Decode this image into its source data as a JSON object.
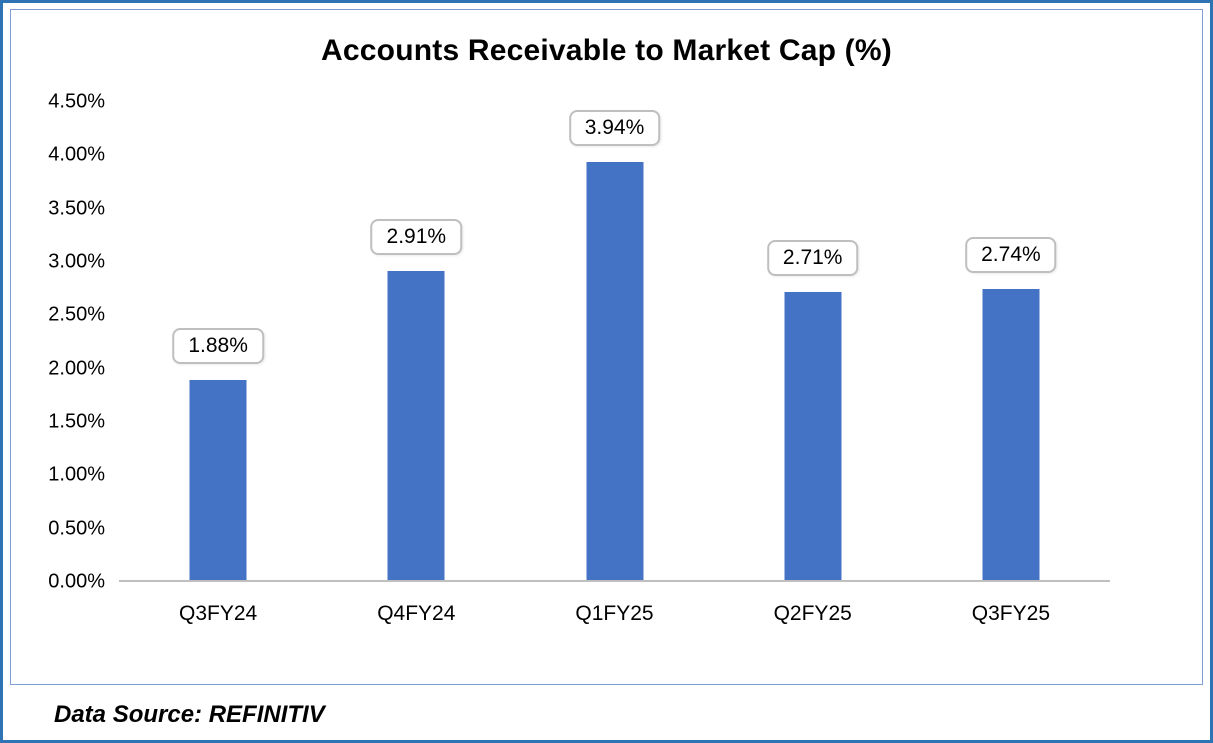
{
  "chart_data": {
    "type": "bar",
    "title": "Accounts Receivable to Market Cap (%)",
    "categories": [
      "Q3FY24",
      "Q4FY24",
      "Q1FY25",
      "Q2FY25",
      "Q3FY25"
    ],
    "values": [
      1.88,
      2.91,
      3.94,
      2.71,
      2.74
    ],
    "value_labels": [
      "1.88%",
      "2.91%",
      "3.94%",
      "2.71%",
      "2.74%"
    ],
    "y_ticks": [
      "4.50%",
      "4.00%",
      "3.50%",
      "3.00%",
      "2.50%",
      "2.00%",
      "1.50%",
      "1.00%",
      "0.50%",
      "0.00%"
    ],
    "ylim": [
      0,
      4.5
    ],
    "grid": false,
    "legend_position": "none",
    "xlabel": "",
    "ylabel": ""
  },
  "source_note": "Data Source: REFINITIV",
  "colors": {
    "bar": "#4472C4",
    "frame_border": "#2E74B5",
    "chart_border": "#7F9FD4",
    "axis_line": "#BFBFBF",
    "label_box_border": "#BFBFBF"
  }
}
